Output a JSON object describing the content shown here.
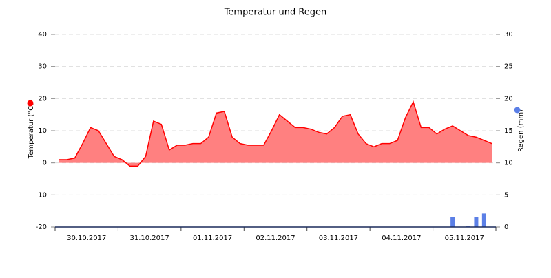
{
  "chart_data": {
    "type": "area_bar",
    "title": "Temperatur und Regen",
    "y_label": "Temperatur (°C)",
    "y2_label": "Regen (mm)",
    "x": [
      null,
      null,
      null,
      null,
      "30.10.2017",
      null,
      null,
      null,
      null,
      null,
      null,
      null,
      "31.10.2017",
      null,
      null,
      null,
      null,
      null,
      null,
      null,
      "01.11.2017",
      null,
      null,
      null,
      null,
      null,
      null,
      null,
      "02.11.2017",
      null,
      null,
      null,
      null,
      null,
      null,
      null,
      "03.11.2017",
      null,
      null,
      null,
      null,
      null,
      null,
      null,
      "04.11.2017",
      null,
      null,
      null,
      null,
      null,
      null,
      null,
      "05.11.2017",
      null,
      null,
      null
    ],
    "ylim": [
      -20,
      40
    ],
    "yticks": [
      -20,
      -10,
      0,
      10,
      20,
      30,
      40
    ],
    "y2lim": [
      0,
      30
    ],
    "y2ticks": [
      0,
      5,
      10,
      15,
      20,
      25,
      30
    ],
    "grid": true,
    "series": [
      {
        "name": "Temperatur",
        "kind": "area",
        "color": "#ff0000",
        "fill": "#ff8080",
        "values": [
          1,
          1,
          1.5,
          6,
          11,
          10,
          6,
          2,
          1,
          -1,
          -1,
          2,
          13,
          12,
          4,
          5.5,
          5.5,
          6,
          6,
          8,
          15.5,
          16,
          8,
          6,
          5.5,
          5.5,
          5.5,
          10,
          15,
          13,
          11,
          11,
          10.5,
          9.5,
          9,
          11,
          14.5,
          15,
          9,
          6,
          5,
          6,
          6,
          7,
          14,
          19,
          11,
          11,
          9,
          10.5,
          11.5,
          10,
          8.5,
          8,
          7,
          6
        ]
      },
      {
        "name": "Regen",
        "kind": "bar",
        "axis": "y2",
        "color": "#5b7fe6",
        "values": [
          null,
          null,
          null,
          null,
          null,
          null,
          null,
          null,
          null,
          null,
          null,
          null,
          null,
          null,
          null,
          null,
          null,
          null,
          null,
          null,
          null,
          null,
          null,
          null,
          null,
          null,
          null,
          null,
          null,
          null,
          null,
          null,
          null,
          null,
          null,
          null,
          null,
          null,
          null,
          null,
          null,
          null,
          null,
          null,
          null,
          null,
          null,
          null,
          null,
          null,
          1.6,
          null,
          0.1,
          1.6,
          2.1,
          null
        ]
      }
    ]
  }
}
